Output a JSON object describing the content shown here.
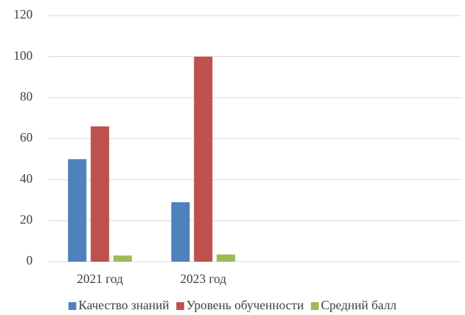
{
  "chart_data": {
    "type": "bar",
    "categories": [
      "2021 год",
      "2023 год",
      null,
      null
    ],
    "series": [
      {
        "name": "Качество знаний",
        "color": "#4f81bd",
        "values": [
          50,
          29,
          null,
          null
        ]
      },
      {
        "name": "Уровень обученности",
        "color": "#c0504d",
        "values": [
          66,
          100,
          null,
          null
        ]
      },
      {
        "name": "Средний балл",
        "color": "#9bbb59",
        "values": [
          3,
          3.5,
          null,
          null
        ]
      }
    ],
    "ylim": [
      0,
      120
    ],
    "yticks": [
      0,
      20,
      40,
      60,
      80,
      100,
      120
    ],
    "grid": true,
    "legend": "bottom"
  }
}
